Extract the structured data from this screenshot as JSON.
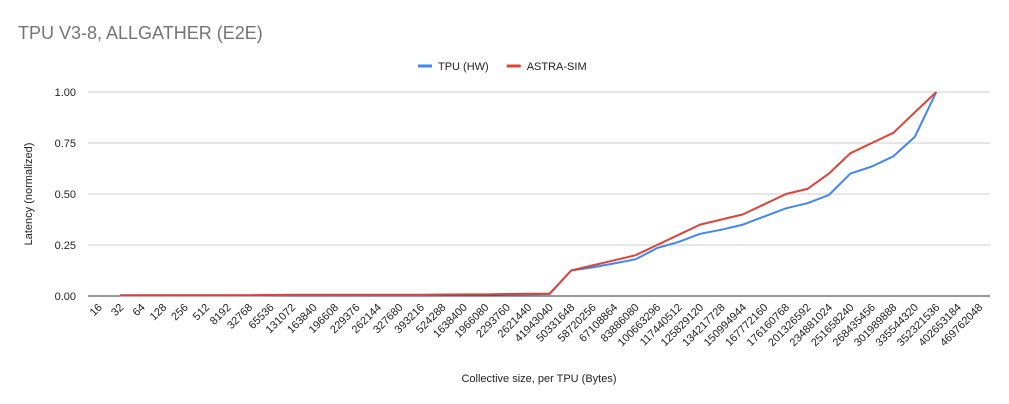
{
  "chart_data": {
    "type": "line",
    "title": "TPU V3-8, ALLGATHER (E2E)",
    "x_label": "Collective size, per TPU (Bytes)",
    "y_label": "Latency (normalized)",
    "categories": [
      "16",
      "32",
      "64",
      "128",
      "256",
      "512",
      "8192",
      "32768",
      "65536",
      "131072",
      "163840",
      "196608",
      "229376",
      "262144",
      "327680",
      "393216",
      "524288",
      "1638400",
      "1966080",
      "2293760",
      "2621440",
      "41943040",
      "50331648",
      "58720256",
      "67108864",
      "83886080",
      "100663296",
      "117440512",
      "125829120",
      "134217728",
      "150994944",
      "167772160",
      "176160768",
      "201326592",
      "234881024",
      "251658240",
      "268435456",
      "301989888",
      "335544320",
      "352321536",
      "402653184",
      "469762048"
    ],
    "series": [
      {
        "name": "TPU (HW)",
        "color": "#4285f4",
        "values": [
          null,
          0.003,
          0.003,
          0.003,
          0.003,
          0.003,
          0.003,
          0.003,
          0.004,
          0.005,
          0.005,
          0.005,
          0.005,
          0.005,
          0.005,
          0.005,
          0.006,
          0.007,
          0.007,
          0.008,
          0.009,
          0.01,
          0.125,
          0.14,
          0.16,
          0.18,
          0.235,
          0.265,
          0.305,
          0.325,
          0.35,
          0.39,
          0.43,
          0.455,
          0.495,
          0.6,
          0.635,
          0.685,
          0.78,
          1.0,
          null,
          null
        ]
      },
      {
        "name": "ASTRA-SIM",
        "color": "#db4437",
        "values": [
          null,
          0.004,
          0.004,
          0.004,
          0.004,
          0.004,
          0.004,
          0.004,
          0.005,
          0.006,
          0.006,
          0.006,
          0.006,
          0.006,
          0.006,
          0.006,
          0.007,
          0.008,
          0.008,
          0.01,
          0.011,
          0.012,
          0.125,
          0.15,
          0.175,
          0.2,
          0.25,
          0.3,
          0.35,
          0.375,
          0.4,
          0.45,
          0.5,
          0.525,
          0.6,
          0.7,
          0.75,
          0.8,
          0.9,
          1.0,
          null,
          null
        ]
      }
    ],
    "ylim": [
      0,
      1
    ],
    "yticks": [
      {
        "value": 0,
        "label": "0.00"
      },
      {
        "value": 0.25,
        "label": "0.25"
      },
      {
        "value": 0.5,
        "label": "0.50"
      },
      {
        "value": 0.75,
        "label": "0.75"
      },
      {
        "value": 1,
        "label": "1.00"
      }
    ],
    "grid": true,
    "legend": "top"
  }
}
